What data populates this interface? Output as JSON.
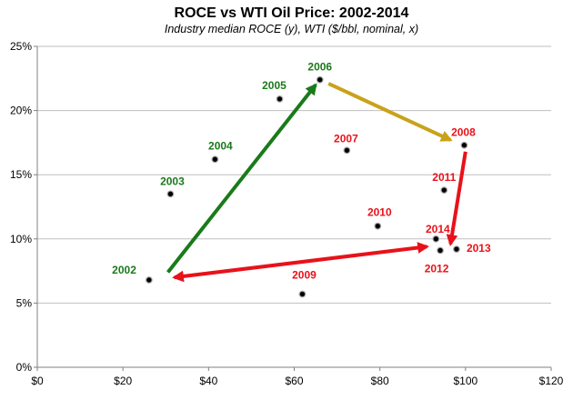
{
  "chart_data": {
    "type": "scatter",
    "title": "ROCE vs WTI Oil Price: 2002-2014",
    "subtitle": "Industry median ROCE (y), WTI ($/bbl, nominal, x)",
    "xlim": [
      0,
      120
    ],
    "ylim": [
      0,
      25
    ],
    "x_ticks": [
      0,
      20,
      40,
      60,
      80,
      100,
      120
    ],
    "x_tick_labels": [
      "$0",
      "$20",
      "$40",
      "$60",
      "$80",
      "$100",
      "$120"
    ],
    "y_ticks": [
      0,
      5,
      10,
      15,
      20,
      25
    ],
    "y_tick_labels": [
      "0%",
      "5%",
      "10%",
      "15%",
      "20%",
      "25%"
    ],
    "grid": "horizontal",
    "colors": {
      "green": "#1a7a1a",
      "red": "#e8121a",
      "gold": "#c9a21a",
      "point": "#000000"
    },
    "points": [
      {
        "label": "2002",
        "x": 26.1,
        "y": 6.8,
        "color": "green"
      },
      {
        "label": "2003",
        "x": 31.1,
        "y": 13.5,
        "color": "green"
      },
      {
        "label": "2004",
        "x": 41.5,
        "y": 16.2,
        "color": "green"
      },
      {
        "label": "2005",
        "x": 56.6,
        "y": 20.9,
        "color": "green"
      },
      {
        "label": "2006",
        "x": 66.0,
        "y": 22.4,
        "color": "green"
      },
      {
        "label": "2007",
        "x": 72.3,
        "y": 16.9,
        "color": "red"
      },
      {
        "label": "2008",
        "x": 99.7,
        "y": 17.3,
        "color": "red"
      },
      {
        "label": "2009",
        "x": 61.9,
        "y": 5.7,
        "color": "red"
      },
      {
        "label": "2010",
        "x": 79.5,
        "y": 11.0,
        "color": "red"
      },
      {
        "label": "2011",
        "x": 95.0,
        "y": 13.8,
        "color": "red"
      },
      {
        "label": "2012",
        "x": 94.1,
        "y": 9.1,
        "color": "red"
      },
      {
        "label": "2013",
        "x": 97.9,
        "y": 9.2,
        "color": "red"
      },
      {
        "label": "2014",
        "x": 93.1,
        "y": 10.0,
        "color": "red"
      }
    ],
    "arrows": [
      {
        "from": [
          30.5,
          7.4
        ],
        "to": [
          65.0,
          22.0
        ],
        "color": "green",
        "heads": "end"
      },
      {
        "from": [
          68.0,
          22.1
        ],
        "to": [
          96.5,
          17.7
        ],
        "color": "gold",
        "heads": "end"
      },
      {
        "from": [
          100.0,
          16.8
        ],
        "to": [
          96.5,
          9.6
        ],
        "color": "red",
        "heads": "end"
      },
      {
        "from": [
          32.0,
          7.0
        ],
        "to": [
          91.0,
          9.4
        ],
        "color": "red",
        "heads": "both"
      }
    ]
  }
}
